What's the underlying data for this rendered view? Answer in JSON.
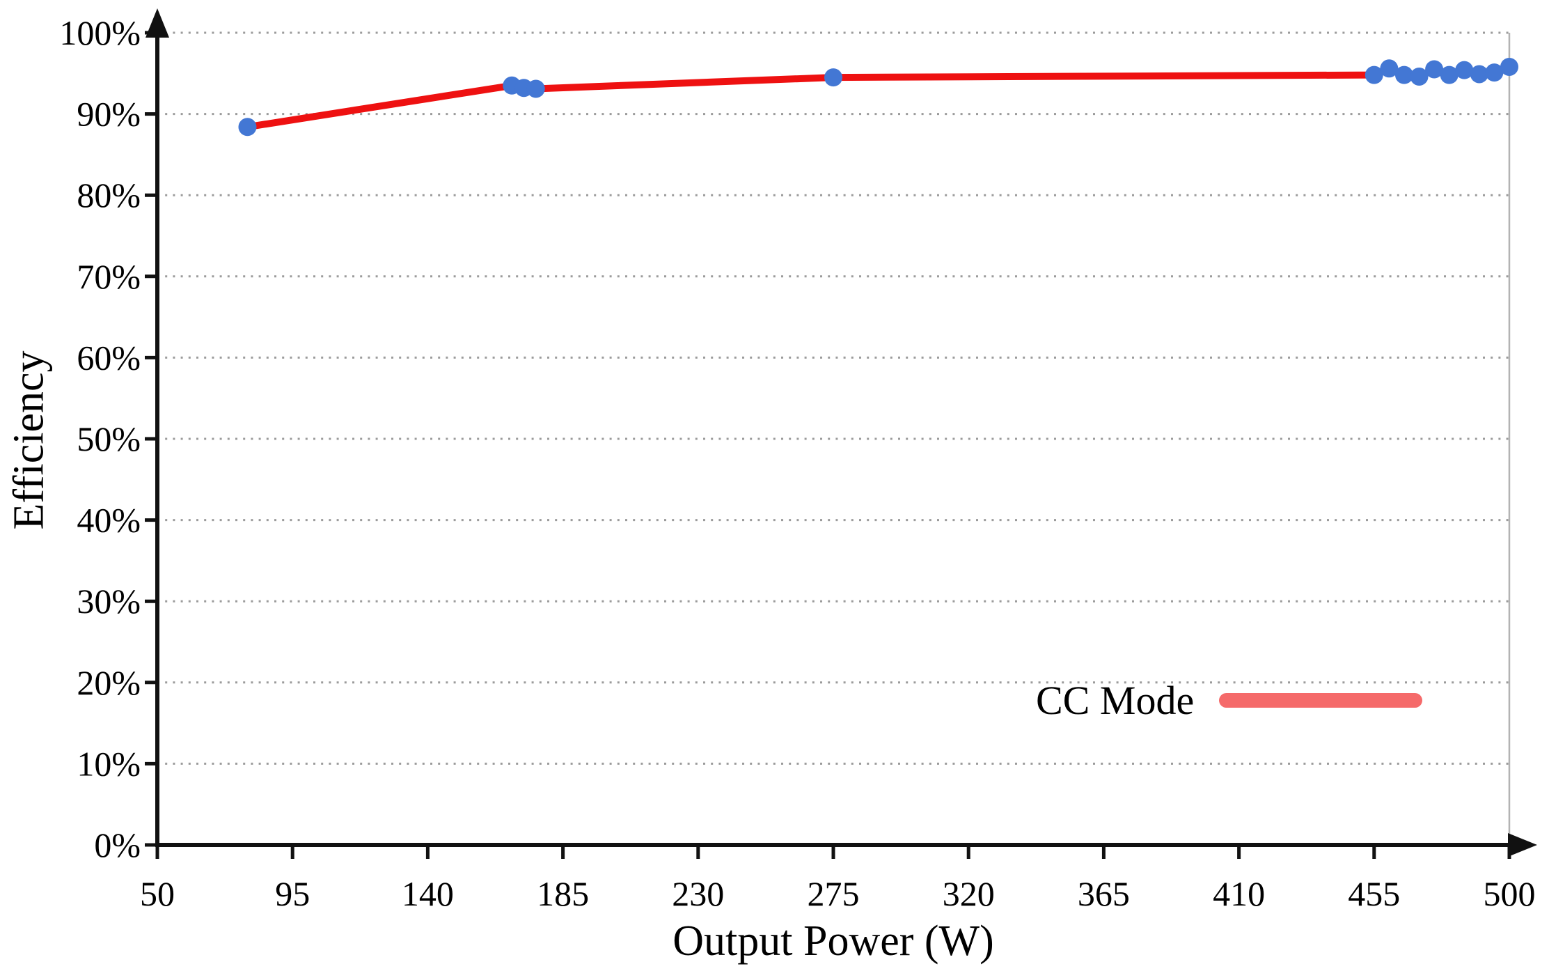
{
  "chart_data": {
    "type": "line",
    "title": "",
    "xlabel": "Output Power (W)",
    "ylabel": "Efficiency",
    "xlim": [
      50,
      500
    ],
    "ylim": [
      0,
      100
    ],
    "grid": "horizontal-dotted",
    "x_ticks": [
      50,
      95,
      140,
      185,
      230,
      275,
      320,
      365,
      410,
      455,
      500
    ],
    "x_tick_labels": [
      "50",
      "95",
      "140",
      "185",
      "230",
      "275",
      "320",
      "365",
      "410",
      "455",
      "500"
    ],
    "y_ticks": [
      0,
      10,
      20,
      30,
      40,
      50,
      60,
      70,
      80,
      90,
      100
    ],
    "y_tick_labels": [
      "0%",
      "10%",
      "20%",
      "30%",
      "40%",
      "50%",
      "60%",
      "70%",
      "80%",
      "90%",
      "100%"
    ],
    "legend": {
      "label": "CC Mode",
      "position": "inside-lower-right"
    },
    "series": [
      {
        "name": "CC Mode",
        "points": [
          [
            80,
            88.4
          ],
          [
            168,
            93.5
          ],
          [
            172,
            93.2
          ],
          [
            176,
            93.1
          ],
          [
            275,
            94.5
          ],
          [
            455,
            94.8
          ],
          [
            460,
            95.6
          ],
          [
            465,
            94.8
          ],
          [
            470,
            94.6
          ],
          [
            475,
            95.5
          ],
          [
            480,
            94.8
          ],
          [
            485,
            95.4
          ],
          [
            490,
            94.9
          ],
          [
            495,
            95.1
          ],
          [
            500,
            95.8
          ]
        ]
      }
    ],
    "colors": {
      "line": "#ee1111",
      "marker": "#4377d4",
      "legend_line": "#f56a6a",
      "grid": "#9b9b9b",
      "axis": "#111111",
      "right_border": "#b3b3b3",
      "text": "#000000"
    }
  }
}
